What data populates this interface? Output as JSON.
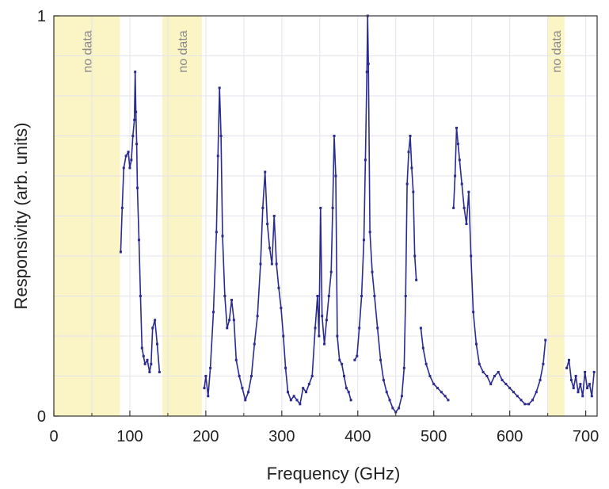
{
  "chart_data": {
    "type": "line",
    "xlabel": "Frequency (GHz)",
    "ylabel": "Responsivity (arb. units)",
    "xlim": [
      0,
      715
    ],
    "ylim": [
      0,
      1
    ],
    "x_ticks": [
      0,
      100,
      200,
      300,
      400,
      500,
      600,
      700
    ],
    "y_ticks": [
      {
        "value": 0,
        "label": "0"
      },
      {
        "value": 1,
        "label": "1"
      }
    ],
    "grid": true,
    "colors": {
      "series": "#2b2b8f",
      "band": "#fbf4c4",
      "grid": "#e4e4ee"
    },
    "no_data_bands": [
      {
        "x0": 0,
        "x1": 87,
        "label": "no data"
      },
      {
        "x0": 143,
        "x1": 195,
        "label": "no data"
      },
      {
        "x0": 650,
        "x1": 672,
        "label": "no data"
      }
    ],
    "series": [
      {
        "values_xy": [
          [
            88,
            0.41
          ],
          [
            90,
            0.52
          ],
          [
            92,
            0.62
          ],
          [
            95,
            0.65
          ],
          [
            98,
            0.66
          ],
          [
            100,
            0.62
          ],
          [
            102,
            0.64
          ],
          [
            104,
            0.7
          ],
          [
            106,
            0.74
          ],
          [
            107,
            0.86
          ],
          [
            108,
            0.76
          ],
          [
            109,
            0.68
          ],
          [
            110,
            0.57
          ],
          [
            112,
            0.44
          ],
          [
            114,
            0.3
          ],
          [
            116,
            0.17
          ],
          [
            118,
            0.15
          ],
          [
            120,
            0.13
          ],
          [
            123,
            0.14
          ],
          [
            126,
            0.11
          ],
          [
            128,
            0.13
          ],
          [
            130,
            0.22
          ],
          [
            133,
            0.24
          ],
          [
            136,
            0.18
          ],
          [
            139,
            0.11
          ],
          [
            null,
            null
          ],
          [
            198,
            0.07
          ],
          [
            200,
            0.1
          ],
          [
            203,
            0.05
          ],
          [
            206,
            0.12
          ],
          [
            210,
            0.26
          ],
          [
            214,
            0.46
          ],
          [
            216,
            0.65
          ],
          [
            218,
            0.82
          ],
          [
            220,
            0.7
          ],
          [
            222,
            0.45
          ],
          [
            225,
            0.3
          ],
          [
            228,
            0.22
          ],
          [
            231,
            0.24
          ],
          [
            234,
            0.29
          ],
          [
            237,
            0.24
          ],
          [
            240,
            0.14
          ],
          [
            244,
            0.1
          ],
          [
            248,
            0.07
          ],
          [
            252,
            0.04
          ],
          [
            256,
            0.06
          ],
          [
            260,
            0.1
          ],
          [
            264,
            0.18
          ],
          [
            268,
            0.25
          ],
          [
            272,
            0.38
          ],
          [
            275,
            0.52
          ],
          [
            278,
            0.61
          ],
          [
            281,
            0.48
          ],
          [
            284,
            0.42
          ],
          [
            287,
            0.38
          ],
          [
            290,
            0.5
          ],
          [
            293,
            0.38
          ],
          [
            296,
            0.32
          ],
          [
            299,
            0.27
          ],
          [
            302,
            0.2
          ],
          [
            305,
            0.12
          ],
          [
            308,
            0.06
          ],
          [
            312,
            0.04
          ],
          [
            316,
            0.05
          ],
          [
            320,
            0.04
          ],
          [
            324,
            0.03
          ],
          [
            328,
            0.07
          ],
          [
            332,
            0.06
          ],
          [
            336,
            0.08
          ],
          [
            340,
            0.1
          ],
          [
            344,
            0.22
          ],
          [
            347,
            0.3
          ],
          [
            349,
            0.2
          ],
          [
            351,
            0.52
          ],
          [
            353,
            0.25
          ],
          [
            356,
            0.18
          ],
          [
            359,
            0.24
          ],
          [
            362,
            0.3
          ],
          [
            365,
            0.36
          ],
          [
            367,
            0.52
          ],
          [
            369,
            0.7
          ],
          [
            371,
            0.6
          ],
          [
            373,
            0.2
          ],
          [
            376,
            0.14
          ],
          [
            379,
            0.13
          ],
          [
            382,
            0.1
          ],
          [
            385,
            0.07
          ],
          [
            388,
            0.06
          ],
          [
            391,
            0.04
          ],
          [
            null,
            null
          ],
          [
            396,
            0.14
          ],
          [
            399,
            0.15
          ],
          [
            402,
            0.22
          ],
          [
            405,
            0.3
          ],
          [
            408,
            0.44
          ],
          [
            410,
            0.64
          ],
          [
            412,
            0.86
          ],
          [
            413,
            1.0
          ],
          [
            414,
            0.88
          ],
          [
            416,
            0.46
          ],
          [
            419,
            0.36
          ],
          [
            422,
            0.3
          ],
          [
            426,
            0.22
          ],
          [
            430,
            0.14
          ],
          [
            434,
            0.09
          ],
          [
            438,
            0.06
          ],
          [
            442,
            0.04
          ],
          [
            446,
            0.02
          ],
          [
            450,
            0.01
          ],
          [
            454,
            0.02
          ],
          [
            458,
            0.05
          ],
          [
            461,
            0.12
          ],
          [
            463,
            0.3
          ],
          [
            465,
            0.58
          ],
          [
            467,
            0.66
          ],
          [
            469,
            0.7
          ],
          [
            471,
            0.62
          ],
          [
            473,
            0.56
          ],
          [
            475,
            0.4
          ],
          [
            477,
            0.34
          ],
          [
            null,
            null
          ],
          [
            483,
            0.22
          ],
          [
            486,
            0.17
          ],
          [
            490,
            0.13
          ],
          [
            495,
            0.1
          ],
          [
            500,
            0.08
          ],
          [
            505,
            0.07
          ],
          [
            510,
            0.06
          ],
          [
            515,
            0.05
          ],
          [
            519,
            0.04
          ],
          [
            null,
            null
          ],
          [
            526,
            0.52
          ],
          [
            528,
            0.6
          ],
          [
            530,
            0.72
          ],
          [
            532,
            0.68
          ],
          [
            534,
            0.64
          ],
          [
            537,
            0.58
          ],
          [
            540,
            0.52
          ],
          [
            543,
            0.48
          ],
          [
            546,
            0.56
          ],
          [
            549,
            0.4
          ],
          [
            552,
            0.26
          ],
          [
            556,
            0.18
          ],
          [
            560,
            0.13
          ],
          [
            565,
            0.11
          ],
          [
            570,
            0.1
          ],
          [
            575,
            0.08
          ],
          [
            580,
            0.1
          ],
          [
            585,
            0.11
          ],
          [
            590,
            0.09
          ],
          [
            595,
            0.08
          ],
          [
            600,
            0.07
          ],
          [
            605,
            0.06
          ],
          [
            610,
            0.05
          ],
          [
            615,
            0.04
          ],
          [
            620,
            0.03
          ],
          [
            625,
            0.03
          ],
          [
            630,
            0.04
          ],
          [
            635,
            0.06
          ],
          [
            640,
            0.09
          ],
          [
            644,
            0.13
          ],
          [
            647,
            0.19
          ],
          [
            null,
            null
          ],
          [
            675,
            0.12
          ],
          [
            678,
            0.14
          ],
          [
            681,
            0.09
          ],
          [
            684,
            0.07
          ],
          [
            687,
            0.1
          ],
          [
            690,
            0.06
          ],
          [
            693,
            0.08
          ],
          [
            696,
            0.05
          ],
          [
            699,
            0.11
          ],
          [
            702,
            0.07
          ],
          [
            705,
            0.08
          ],
          [
            708,
            0.05
          ],
          [
            711,
            0.11
          ]
        ]
      }
    ]
  }
}
